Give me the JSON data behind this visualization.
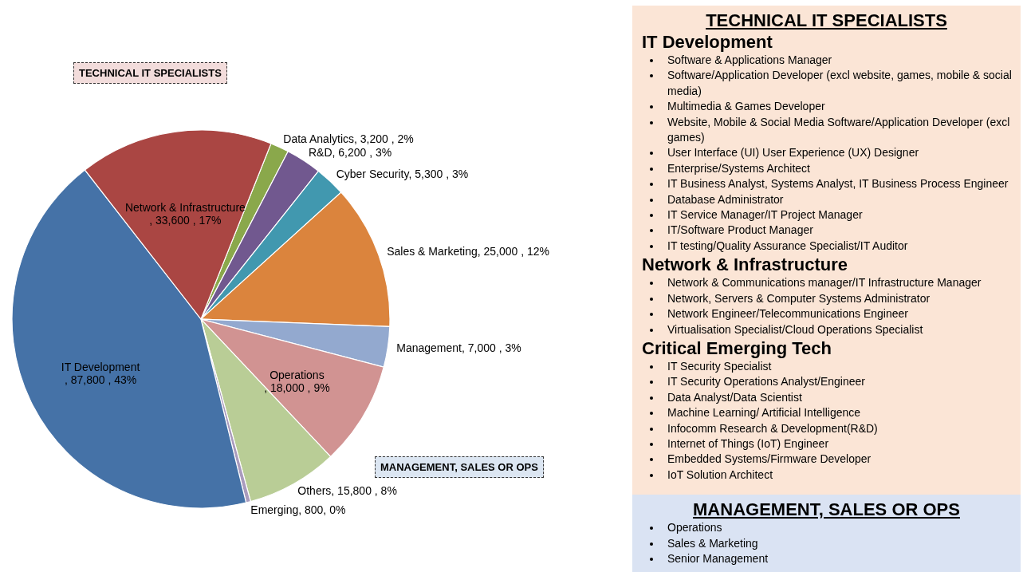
{
  "chart_data": [
    {
      "type": "pie",
      "categories": [
        "Data Analytics",
        "R&D",
        "Cyber Security",
        "Sales & Marketing",
        "Management",
        "Operations",
        "Others",
        "Emerging",
        "IT Development",
        "Network & Infrastructure"
      ],
      "values": [
        3200,
        6200,
        5300,
        25000,
        7000,
        18000,
        15800,
        800,
        87800,
        33600
      ],
      "colors": [
        "#8aa84b",
        "#71588f",
        "#4198af",
        "#db843d",
        "#93a9cf",
        "#d19392",
        "#b9cd96",
        "#a99bbd",
        "#4572a7",
        "#aa4643"
      ],
      "value_labels": [
        ",  3,200 , 2%",
        ",  6,200 , 3%",
        ",  5,300 , 3%",
        ",  25,000 , 12%",
        ",  7,000 , 3%",
        ", 18,000 , 9%",
        ", 15,800 , 8%",
        ", 800, 0%",
        ",  87,800 , 43%",
        ", 33,600 , 17%"
      ],
      "annotations": [
        "TECHNICAL IT SPECIALISTS",
        "MANAGEMENT, SALES OR OPS"
      ]
    },
    {
      "type": "other",
      "title": "TECHNICAL IT SPECIALISTS"
    },
    {
      "type": "other",
      "title": "IT Development",
      "annotations": [
        "Software & Applications Manager",
        "Software/Application Developer (excl website, games, mobile & social media)",
        "Multimedia & Games Developer",
        "Website, Mobile & Social Media Software/Application Developer (excl games)",
        "User Interface (UI) User Experience (UX) Designer",
        "Enterprise/Systems Architect",
        "IT Business Analyst, Systems Analyst, IT Business Process Engineer",
        "Database Administrator",
        "IT Service Manager/IT Project Manager",
        "IT/Software Product Manager",
        "IT testing/Quality Assurance Specialist/IT Auditor"
      ]
    },
    {
      "type": "other",
      "title": "Network & Infrastructure",
      "annotations": [
        "Network & Communications manager/IT Infrastructure Manager",
        "Network, Servers & Computer Systems Administrator",
        "Network Engineer/Telecommunications Engineer",
        "Virtualisation Specialist/Cloud Operations Specialist"
      ]
    },
    {
      "type": "other",
      "title": "Critical Emerging Tech",
      "annotations": [
        "IT Security Specialist",
        "IT Security Operations Analyst/Engineer",
        "Data Analyst/Data Scientist",
        "Machine Learning/ Artificial Intelligence",
        "Infocomm Research & Development(R&D)",
        "Internet of Things (IoT) Engineer",
        "Embedded Systems/Firmware Developer",
        "IoT Solution Architect"
      ]
    },
    {
      "type": "other",
      "title": "MANAGEMENT, SALES OR OPS",
      "annotations": [
        "Operations",
        "Sales & Marketing",
        "Senior Management"
      ]
    }
  ]
}
